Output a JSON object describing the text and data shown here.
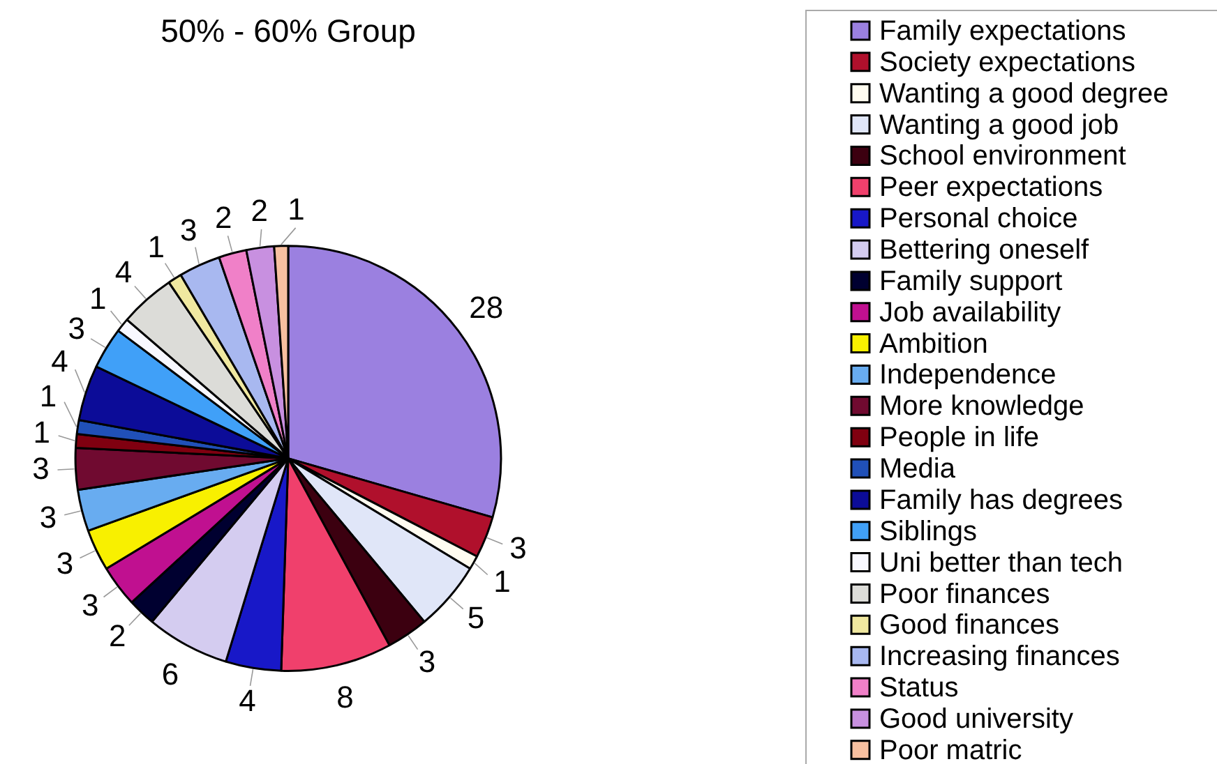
{
  "chart_data": {
    "type": "pie",
    "title": "50% - 60% Group",
    "categories": [
      "Family expectations",
      "Society expectations",
      "Wanting a good degree",
      "Wanting a good job",
      "School environment",
      "Peer expectations",
      "Personal choice",
      "Bettering oneself",
      "Family support",
      "Job availability",
      "Ambition",
      "Independence",
      "More knowledge",
      "People in life",
      "Media",
      "Family has degrees",
      "Siblings",
      "Uni better than tech",
      "Poor finances",
      "Good finances",
      "Increasing finances",
      "Status",
      "Good university",
      "Poor matric"
    ],
    "values": [
      28,
      3,
      1,
      5,
      3,
      8,
      4,
      6,
      2,
      3,
      3,
      3,
      3,
      1,
      1,
      4,
      3,
      1,
      4,
      1,
      3,
      2,
      2,
      1
    ],
    "colors": [
      "#9b80e0",
      "#b0102c",
      "#fffcf0",
      "#e0e6f8",
      "#3c0010",
      "#f0406c",
      "#1818c8",
      "#d4ccf0",
      "#000030",
      "#c01090",
      "#f8f000",
      "#68acf0",
      "#700a30",
      "#800010",
      "#2050b8",
      "#0c0c98",
      "#40a0f8",
      "#f8f8ff",
      "#dcdcd8",
      "#f0e8a0",
      "#a8b8f0",
      "#f080c8",
      "#c890e0",
      "#f8c0a0"
    ],
    "data_labels": true,
    "legend": "right"
  }
}
